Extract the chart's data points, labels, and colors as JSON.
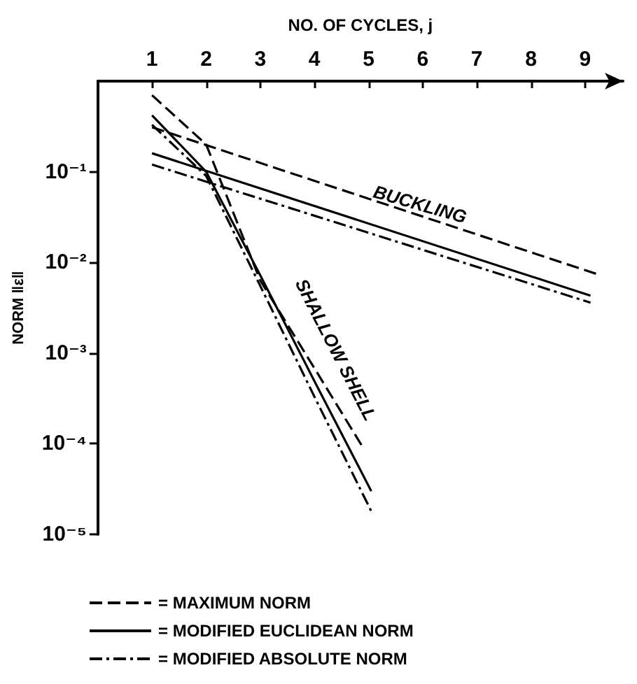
{
  "chart_data": {
    "type": "line",
    "xlabel": "NO. OF CYCLES, j",
    "ylabel": "NORM ‖ε‖",
    "xlim": [
      0,
      9.7
    ],
    "xticks": [
      1,
      2,
      3,
      4,
      5,
      6,
      7,
      8,
      9
    ],
    "ylim": [
      1e-05,
      1
    ],
    "yticks": [
      {
        "value": 1e-05,
        "label": "10⁻⁵"
      },
      {
        "value": 0.0001,
        "label": "10⁻⁴"
      },
      {
        "value": 0.001,
        "label": "10⁻³"
      },
      {
        "value": 0.01,
        "label": "10⁻²"
      },
      {
        "value": 0.1,
        "label": "10⁻¹"
      }
    ],
    "log": "y",
    "grid": false,
    "marker": "none",
    "legend": "bottom",
    "series": [
      {
        "name": "= MAXIMUM NORM",
        "color": "#000000",
        "line_style": "dashed",
        "x": [
          1,
          9.2
        ],
        "values": [
          0.31,
          0.0075
        ]
      },
      {
        "name": "= MODIFIED EUCLIDEAN NORM",
        "color": "#000000",
        "line_style": "solid",
        "x": [
          1,
          9.1
        ],
        "values": [
          0.16,
          0.0043
        ]
      },
      {
        "name": "= MODIFIED ABSOLUTE NORM",
        "color": "#000000",
        "line_style": "dashdot",
        "x": [
          1,
          9.1
        ],
        "values": [
          0.12,
          0.0036
        ]
      },
      {
        "color": "#000000",
        "line_style": "dashed",
        "x": [
          1,
          2,
          3,
          4,
          4.9
        ],
        "values": [
          0.7,
          0.2,
          0.0063,
          0.00068,
          9e-05
        ]
      },
      {
        "color": "#000000",
        "line_style": "solid",
        "x": [
          1,
          2,
          3,
          4,
          5.05
        ],
        "values": [
          0.42,
          0.1,
          0.0072,
          0.00049,
          3e-05
        ]
      },
      {
        "color": "#000000",
        "line_style": "dashdot",
        "x": [
          1,
          2,
          3,
          4,
          5.05
        ],
        "values": [
          0.33,
          0.09,
          0.0055,
          0.00033,
          1.8e-05
        ]
      }
    ],
    "annotations": [
      "BUCKLING",
      "SHALLOW SHELL"
    ]
  }
}
